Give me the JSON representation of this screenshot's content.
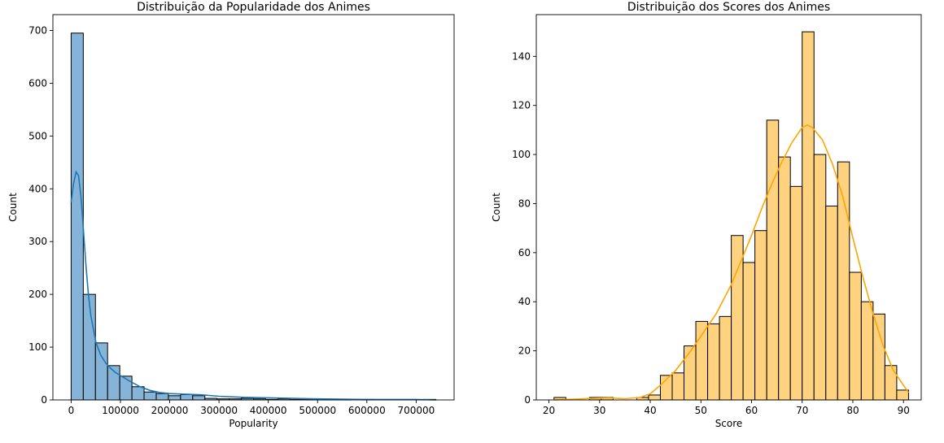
{
  "chart_data": [
    {
      "type": "histogram",
      "title": "Distribuição da Popularidade dos Animes",
      "xlabel": "Popularity",
      "ylabel": "Count",
      "xlim": [
        -37000,
        777000
      ],
      "ylim": [
        0,
        730
      ],
      "xticks": [
        0,
        100000,
        200000,
        300000,
        400000,
        500000,
        600000,
        700000
      ],
      "yticks": [
        0,
        100,
        200,
        300,
        400,
        500,
        600,
        700
      ],
      "bin_start": 0,
      "bin_width": 24667,
      "counts": [
        695,
        200,
        108,
        65,
        45,
        25,
        15,
        12,
        8,
        10,
        8,
        3,
        2,
        2,
        3,
        2,
        1,
        2,
        1,
        1,
        1,
        1,
        1,
        0,
        1,
        0,
        0,
        0,
        0,
        1
      ],
      "kde": {
        "x": [
          0,
          5000,
          10000,
          15000,
          20000,
          25000,
          30000,
          35000,
          40000,
          50000,
          60000,
          70000,
          80000,
          90000,
          100000,
          120000,
          140000,
          160000,
          180000,
          200000,
          230000,
          260000,
          300000,
          350000,
          400000,
          450000,
          500000,
          600000,
          700000,
          740000
        ],
        "y": [
          375,
          410,
          432,
          425,
          385,
          320,
          255,
          200,
          160,
          110,
          85,
          70,
          60,
          52,
          46,
          35,
          25,
          18,
          14,
          12,
          11,
          10,
          7,
          5,
          4,
          3,
          2,
          1,
          1,
          0
        ]
      },
      "bar_color": "#86b4d8",
      "line_color": "#1f77b4"
    },
    {
      "type": "histogram",
      "title": "Distribuição dos Scores dos Animes",
      "xlabel": "Score",
      "ylabel": "Count",
      "xlim": [
        17.5,
        93.5
      ],
      "ylim": [
        0,
        157
      ],
      "xticks": [
        20,
        30,
        40,
        50,
        60,
        70,
        80,
        90
      ],
      "yticks": [
        0,
        20,
        40,
        60,
        80,
        100,
        120,
        140
      ],
      "bin_start": 21,
      "bin_width": 2.3333,
      "counts": [
        1,
        0,
        0,
        1,
        1,
        0,
        0,
        1,
        2,
        10,
        11,
        22,
        32,
        31,
        34,
        67,
        56,
        69,
        114,
        99,
        87,
        150,
        100,
        79,
        97,
        52,
        40,
        35,
        14,
        4
      ],
      "kde": {
        "x": [
          21,
          25,
          28,
          32,
          35,
          38,
          40,
          42,
          45,
          48,
          50,
          53,
          56,
          58,
          60,
          62,
          64,
          66,
          68,
          70,
          71,
          72,
          74,
          76,
          78,
          80,
          82,
          84,
          86,
          88,
          90,
          91
        ],
        "y": [
          0,
          0.3,
          0.6,
          0.8,
          0.5,
          1,
          2.5,
          6,
          12,
          20,
          26,
          35,
          47,
          57,
          67,
          78,
          88,
          97,
          105,
          111,
          112,
          111,
          106,
          96,
          83,
          66,
          50,
          35,
          22,
          12,
          6,
          3
        ]
      },
      "bar_color": "#ffd27f",
      "line_color": "#ffa500"
    }
  ]
}
